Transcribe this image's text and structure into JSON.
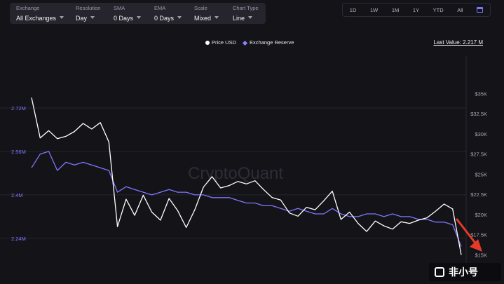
{
  "toolbar": {
    "exchange": {
      "label": "Exchange",
      "value": "All Exchanges"
    },
    "resolution": {
      "label": "Resolution",
      "value": "Day"
    },
    "sma": {
      "label": "SMA",
      "value": "0 Days"
    },
    "ema": {
      "label": "EMA",
      "value": "0 Days"
    },
    "scale": {
      "label": "Scale",
      "value": "Mixed"
    },
    "chart_type": {
      "label": "Chart Type",
      "value": "Line"
    }
  },
  "ranges": [
    "1D",
    "1W",
    "1M",
    "1Y",
    "YTD",
    "All"
  ],
  "last_value": "Last Value: 2.217 M",
  "watermark": "CryptoQuant",
  "logo_text": "非小号",
  "colors": {
    "price": "#ffffff",
    "reserve": "#7d77ff",
    "arrow": "#e53a2a"
  },
  "chart_data": {
    "type": "line",
    "legend": [
      "Price USD",
      "Exchange Reserve"
    ],
    "legend_position": "top",
    "left_axis": {
      "ticks": [
        "2.24M",
        "2.4M",
        "2.56M",
        "2.72M"
      ],
      "values": [
        2.24,
        2.4,
        2.56,
        2.72
      ],
      "range": [
        2.09,
        2.88
      ]
    },
    "right_axis": {
      "ticks": [
        "$15K",
        "$17.5K",
        "$20K",
        "$22.5K",
        "$25K",
        "$27.5K",
        "$30K",
        "$32.5K",
        "$35K"
      ],
      "values": [
        15,
        17.5,
        20,
        22.5,
        25,
        27.5,
        30,
        32.5,
        35
      ],
      "range": [
        12,
        38.6
      ]
    },
    "series": [
      {
        "name": "Exchange Reserve",
        "axis": "left",
        "values": [
          2.5,
          2.55,
          2.56,
          2.49,
          2.52,
          2.51,
          2.52,
          2.51,
          2.5,
          2.49,
          2.41,
          2.43,
          2.42,
          2.41,
          2.4,
          2.41,
          2.42,
          2.41,
          2.41,
          2.4,
          2.4,
          2.39,
          2.39,
          2.39,
          2.38,
          2.37,
          2.37,
          2.36,
          2.36,
          2.35,
          2.34,
          2.35,
          2.34,
          2.33,
          2.33,
          2.35,
          2.33,
          2.32,
          2.32,
          2.33,
          2.33,
          2.32,
          2.33,
          2.32,
          2.32,
          2.31,
          2.31,
          2.3,
          2.3,
          2.29,
          2.21
        ]
      },
      {
        "name": "Price USD",
        "axis": "right",
        "values": [
          34.5,
          29.5,
          30.4,
          29.4,
          29.7,
          30.3,
          31.3,
          30.6,
          31.4,
          29,
          18.5,
          21.9,
          19.9,
          22.4,
          20.3,
          19.3,
          22,
          20.5,
          18.4,
          20.6,
          23.4,
          24.7,
          23.3,
          23.6,
          24.1,
          23.8,
          24.2,
          23.1,
          22.1,
          21.8,
          20.2,
          19.8,
          20.9,
          20.6,
          21.7,
          22.9,
          19.4,
          20.3,
          18.9,
          17.9,
          19.2,
          18.6,
          18.2,
          19.1,
          18.9,
          19.3,
          19.6,
          20.4,
          21.3,
          20.7,
          15
        ]
      }
    ]
  }
}
